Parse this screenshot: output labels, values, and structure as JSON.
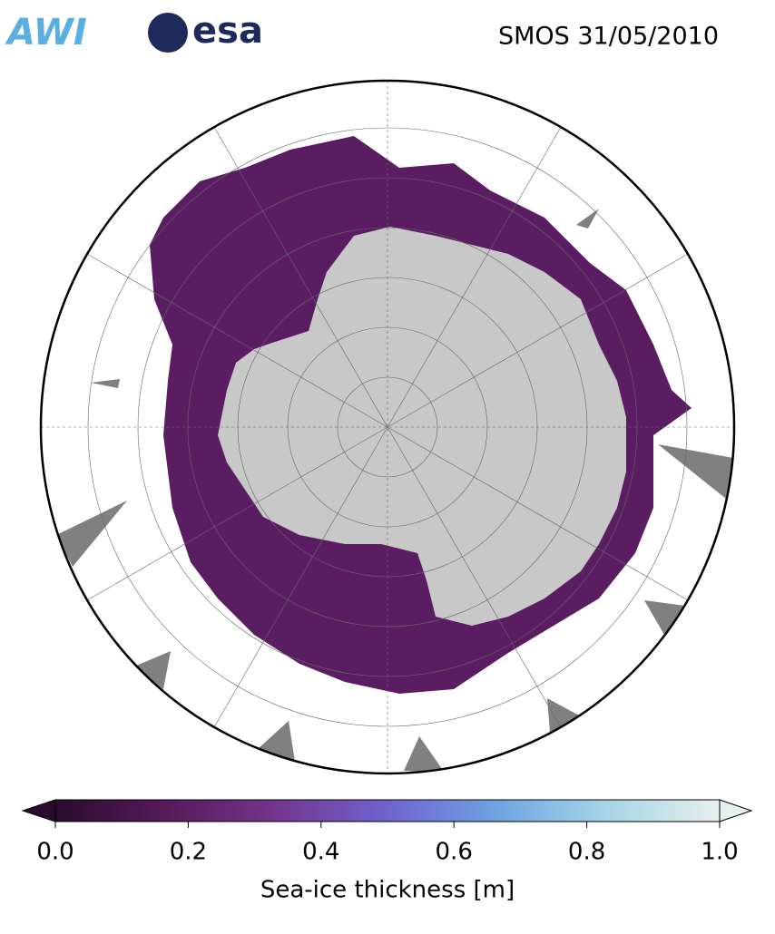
{
  "header": {
    "logos": [
      "AWI",
      "esa"
    ],
    "title": "SMOS 31/05/2010"
  },
  "colorbar": {
    "label": "Sea-ice thickness [m]",
    "lim": [
      0,
      1
    ],
    "ticks": [
      {
        "value": 0,
        "label": "0.0"
      },
      0.2,
      0.4,
      0.6,
      0.8,
      {
        "value": 1,
        "label": "1.0"
      }
    ],
    "colors": [
      "#2b0b2e",
      "#561a5a",
      "#74368e",
      "#6f63d0",
      "#6fa4e2",
      "#a7d6e6",
      "#e6efee"
    ]
  }
}
